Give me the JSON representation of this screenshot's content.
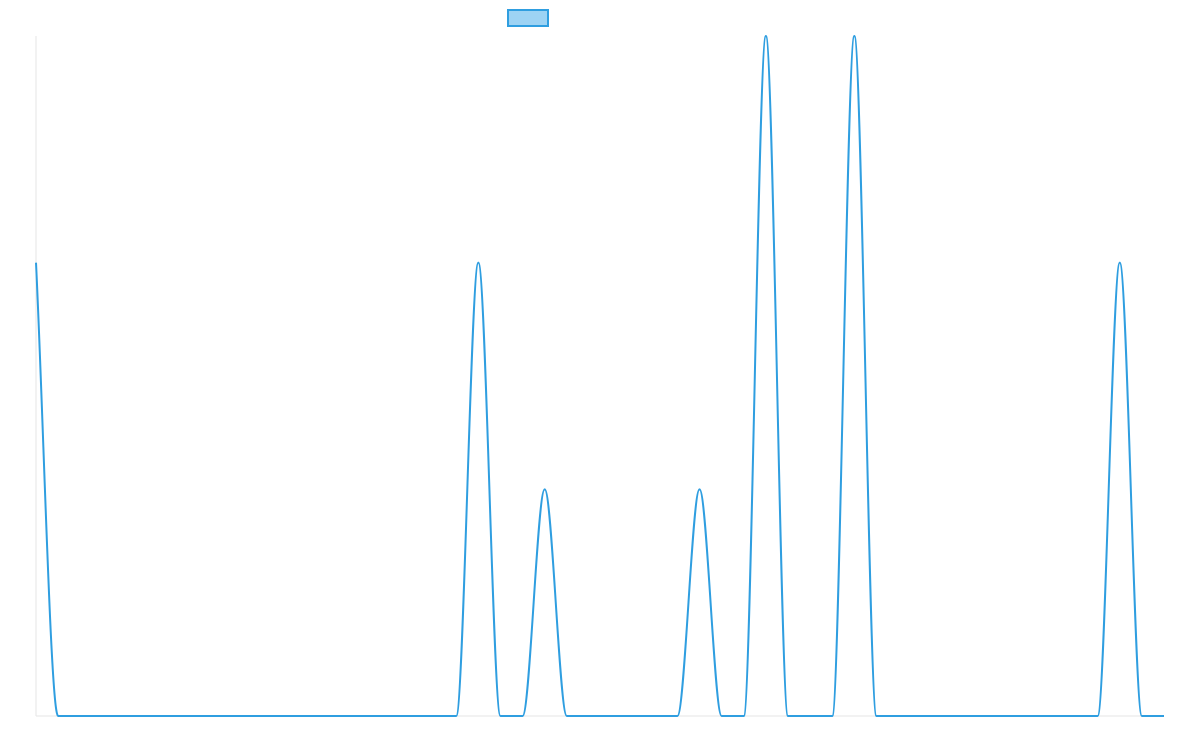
{
  "chart_data": {
    "type": "line",
    "title": "",
    "xlabel": "",
    "ylabel": "",
    "ylim": [
      0,
      3
    ],
    "grid": false,
    "legend": {
      "position": "top-center",
      "show_label": false
    },
    "series": [
      {
        "fill": false,
        "smooth": true,
        "x": [
          0,
          1,
          2,
          3,
          4,
          5,
          6,
          7,
          8,
          9,
          10,
          11,
          12,
          13,
          14,
          15,
          16,
          17,
          18,
          19,
          20,
          21,
          22,
          23,
          24,
          25,
          26,
          27,
          28,
          29,
          30,
          31,
          32,
          33,
          34,
          35,
          36,
          37,
          38,
          39,
          40,
          41,
          42,
          43,
          44,
          45,
          46,
          47,
          48,
          49,
          50,
          51
        ],
        "values": [
          2,
          0,
          0,
          0,
          0,
          0,
          0,
          0,
          0,
          0,
          0,
          0,
          0,
          0,
          0,
          0,
          0,
          0,
          0,
          0,
          2,
          0,
          0,
          1,
          0,
          0,
          0,
          0,
          0,
          0,
          1,
          0,
          0,
          3,
          0,
          0,
          0,
          3,
          0,
          0,
          0,
          0,
          0,
          0,
          0,
          0,
          0,
          0,
          0,
          2,
          0,
          0
        ]
      }
    ]
  },
  "colors": {
    "line": "#2f9ee0",
    "legend_fill": "#9dd3f4",
    "axis": "#e6e6e6"
  }
}
